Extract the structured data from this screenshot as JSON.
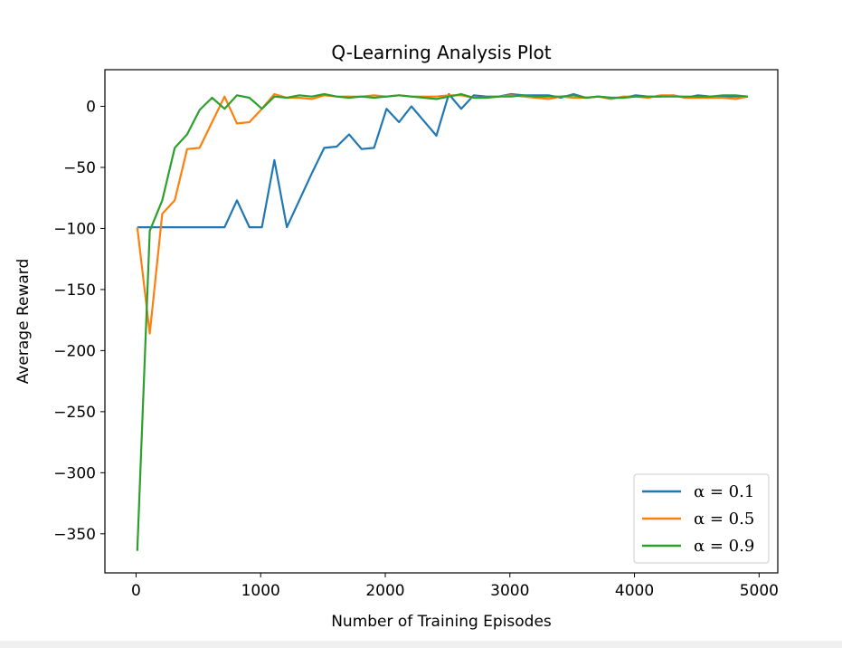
{
  "chart_data": {
    "type": "line",
    "title": "Q-Learning Analysis Plot",
    "xlabel": "Number of Training Episodes",
    "ylabel": "Average Reward",
    "xlim": [
      -250,
      5150
    ],
    "ylim": [
      -382,
      30
    ],
    "xticks": [
      0,
      1000,
      2000,
      3000,
      4000,
      5000
    ],
    "yticks": [
      0,
      -50,
      -100,
      -150,
      -200,
      -250,
      -300,
      -350
    ],
    "xtick_labels": [
      "0",
      "1000",
      "2000",
      "3000",
      "4000",
      "5000"
    ],
    "ytick_labels": [
      "0",
      "−50",
      "−100",
      "−150",
      "−200",
      "−250",
      "−300",
      "−350"
    ],
    "grid": false,
    "legend_position": "lower-right",
    "x": [
      10,
      110,
      210,
      310,
      410,
      510,
      610,
      710,
      810,
      910,
      1010,
      1110,
      1210,
      1310,
      1410,
      1510,
      1610,
      1710,
      1810,
      1910,
      2010,
      2110,
      2210,
      2310,
      2410,
      2510,
      2610,
      2710,
      2810,
      2910,
      3010,
      3110,
      3210,
      3310,
      3410,
      3510,
      3610,
      3710,
      3810,
      3910,
      4010,
      4110,
      4210,
      4310,
      4410,
      4510,
      4610,
      4710,
      4810,
      4910
    ],
    "series": [
      {
        "name": "α = 0.1",
        "color": "#1f77b4",
        "values": [
          -99,
          -99,
          -99,
          -99,
          -99,
          -99,
          -99,
          -99,
          -77,
          -99,
          -99,
          -44,
          -99,
          -77,
          -55,
          -34,
          -33,
          -23,
          -35,
          -34,
          -2,
          -13,
          0,
          -12,
          -24,
          10,
          -2,
          9,
          8,
          8,
          10,
          9,
          9,
          9,
          7,
          10,
          7,
          8,
          7,
          7,
          9,
          8,
          8,
          9,
          7,
          9,
          8,
          8,
          8,
          8
        ]
      },
      {
        "name": "α = 0.5",
        "color": "#ff7f0e",
        "values": [
          -99,
          -186,
          -88,
          -77,
          -35,
          -34,
          -13,
          8,
          -14,
          -13,
          -2,
          10,
          7,
          7,
          6,
          9,
          8,
          8,
          8,
          9,
          8,
          9,
          8,
          8,
          8,
          9,
          9,
          7,
          7,
          8,
          9,
          8,
          7,
          6,
          8,
          7,
          7,
          8,
          6,
          8,
          8,
          7,
          9,
          9,
          7,
          7,
          7,
          7,
          6,
          8
        ]
      },
      {
        "name": "α = 0.9",
        "color": "#2ca02c",
        "values": [
          -364,
          -102,
          -77,
          -34,
          -23,
          -3,
          7,
          -2,
          9,
          7,
          -2,
          8,
          7,
          9,
          8,
          10,
          8,
          7,
          8,
          7,
          8,
          9,
          8,
          7,
          6,
          8,
          10,
          7,
          7,
          8,
          8,
          9,
          8,
          8,
          8,
          9,
          7,
          8,
          7,
          7,
          8,
          8,
          8,
          8,
          8,
          8,
          8,
          9,
          9,
          8
        ]
      }
    ]
  }
}
